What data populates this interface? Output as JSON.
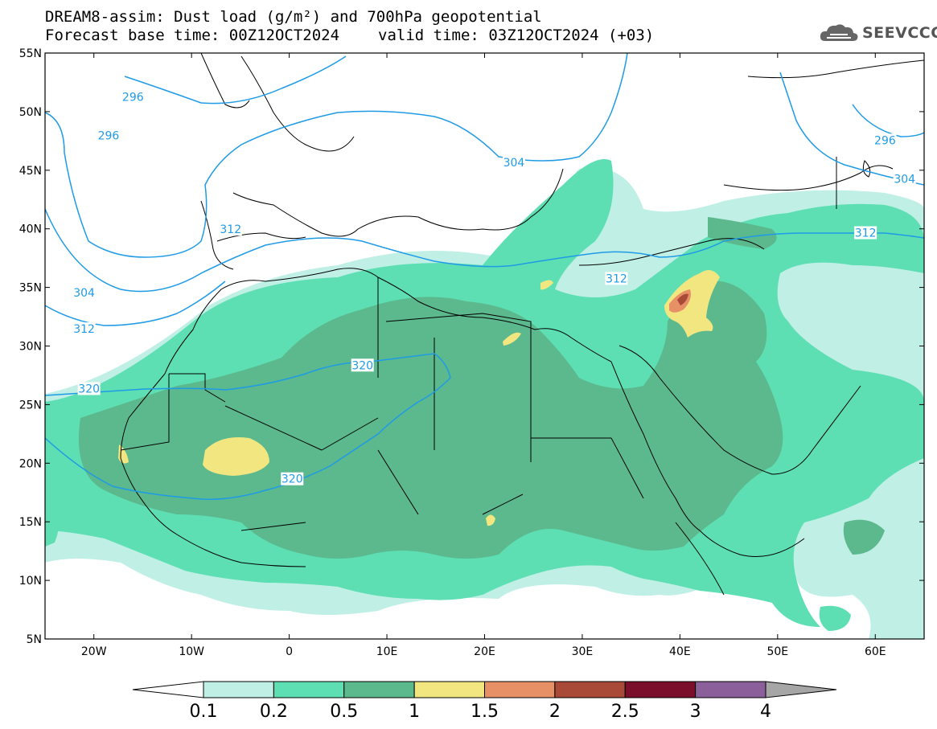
{
  "header": {
    "title_line1": "DREAM8-assim: Dust load (g/m²) and 700hPa geopotential",
    "base_time": "Forecast base time: 00Z12OCT2024",
    "valid_time": "valid time: 03Z12OCT2024 (+03)"
  },
  "logo": {
    "text": "SEEVCCC",
    "icon": "cloud-logo-icon"
  },
  "map": {
    "lon_ticks": [
      {
        "lon": -20,
        "label": "20W"
      },
      {
        "lon": -10,
        "label": "10W"
      },
      {
        "lon": 0,
        "label": "0"
      },
      {
        "lon": 10,
        "label": "10E"
      },
      {
        "lon": 20,
        "label": "20E"
      },
      {
        "lon": 30,
        "label": "30E"
      },
      {
        "lon": 40,
        "label": "40E"
      },
      {
        "lon": 50,
        "label": "50E"
      },
      {
        "lon": 60,
        "label": "60E"
      }
    ],
    "lat_ticks": [
      {
        "lat": 55,
        "label": "55N"
      },
      {
        "lat": 50,
        "label": "50N"
      },
      {
        "lat": 45,
        "label": "45N"
      },
      {
        "lat": 40,
        "label": "40N"
      },
      {
        "lat": 35,
        "label": "35N"
      },
      {
        "lat": 30,
        "label": "30N"
      },
      {
        "lat": 25,
        "label": "25N"
      },
      {
        "lat": 20,
        "label": "20N"
      },
      {
        "lat": 15,
        "label": "15N"
      },
      {
        "lat": 10,
        "label": "10N"
      },
      {
        "lat": 5,
        "label": "5N"
      }
    ],
    "lon_range": [
      -25,
      65
    ],
    "lat_range": [
      5,
      55
    ],
    "contour_labels": [
      {
        "text": "296",
        "lon": -16,
        "lat": 51.2
      },
      {
        "text": "296",
        "lon": -18.5,
        "lat": 47.9
      },
      {
        "text": "304",
        "lon": 23,
        "lat": 45.6
      },
      {
        "text": "296",
        "lon": 61,
        "lat": 47.5
      },
      {
        "text": "304",
        "lon": 63,
        "lat": 44.2
      },
      {
        "text": "312",
        "lon": -6,
        "lat": 39.9
      },
      {
        "text": "312",
        "lon": 59,
        "lat": 39.6
      },
      {
        "text": "312",
        "lon": 33.5,
        "lat": 35.7
      },
      {
        "text": "304",
        "lon": -21,
        "lat": 34.5
      },
      {
        "text": "312",
        "lon": -21,
        "lat": 31.4
      },
      {
        "text": "320",
        "lon": 7.5,
        "lat": 28.3
      },
      {
        "text": "320",
        "lon": -20.5,
        "lat": 26.3
      },
      {
        "text": "320",
        "lon": 0.3,
        "lat": 18.6
      }
    ]
  },
  "colorbar": {
    "colors": [
      "#ffffff",
      "#bfefe5",
      "#5ddfb3",
      "#5cb88d",
      "#f2e680",
      "#e78f65",
      "#a94938",
      "#7a0e2b",
      "#8a5f9a",
      "#a6a6a6"
    ],
    "labels": [
      "0.1",
      "0.2",
      "0.5",
      "1",
      "1.5",
      "2",
      "2.5",
      "3",
      "4"
    ]
  }
}
